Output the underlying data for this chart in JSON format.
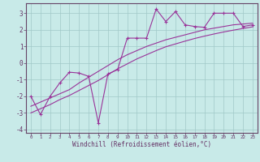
{
  "xlabel": "Windchill (Refroidissement éolien,°C)",
  "bg_color": "#c8eae8",
  "grid_color": "#a0c8c8",
  "line_color": "#993399",
  "spine_color": "#664466",
  "x_hours": [
    0,
    1,
    2,
    3,
    4,
    5,
    6,
    7,
    8,
    9,
    10,
    11,
    12,
    13,
    14,
    15,
    16,
    17,
    18,
    19,
    20,
    21,
    22,
    23
  ],
  "line_data": [
    -2.0,
    -3.1,
    -2.0,
    -1.2,
    -0.55,
    -0.6,
    -0.8,
    -3.6,
    -0.65,
    -0.4,
    1.5,
    1.5,
    1.5,
    3.25,
    2.5,
    3.1,
    2.3,
    2.2,
    2.15,
    3.0,
    3.0,
    3.0,
    2.2,
    2.3
  ],
  "trend_upper": [
    -2.6,
    -2.35,
    -2.1,
    -1.85,
    -1.6,
    -1.2,
    -0.85,
    -0.5,
    -0.15,
    0.2,
    0.5,
    0.75,
    1.0,
    1.2,
    1.4,
    1.55,
    1.7,
    1.85,
    2.0,
    2.1,
    2.2,
    2.3,
    2.35,
    2.4
  ],
  "trend_lower": [
    -3.0,
    -2.75,
    -2.5,
    -2.2,
    -1.95,
    -1.65,
    -1.35,
    -1.05,
    -0.7,
    -0.35,
    -0.05,
    0.25,
    0.5,
    0.75,
    0.98,
    1.15,
    1.32,
    1.48,
    1.62,
    1.75,
    1.87,
    1.98,
    2.08,
    2.18
  ],
  "ylim": [
    -4.2,
    3.6
  ],
  "xlim": [
    -0.5,
    23.5
  ],
  "yticks": [
    -4,
    -3,
    -2,
    -1,
    0,
    1,
    2,
    3
  ],
  "xticks": [
    0,
    1,
    2,
    3,
    4,
    5,
    6,
    7,
    8,
    9,
    10,
    11,
    12,
    13,
    14,
    15,
    16,
    17,
    18,
    19,
    20,
    21,
    22,
    23
  ],
  "tick_color": "#663366",
  "label_color": "#663366"
}
